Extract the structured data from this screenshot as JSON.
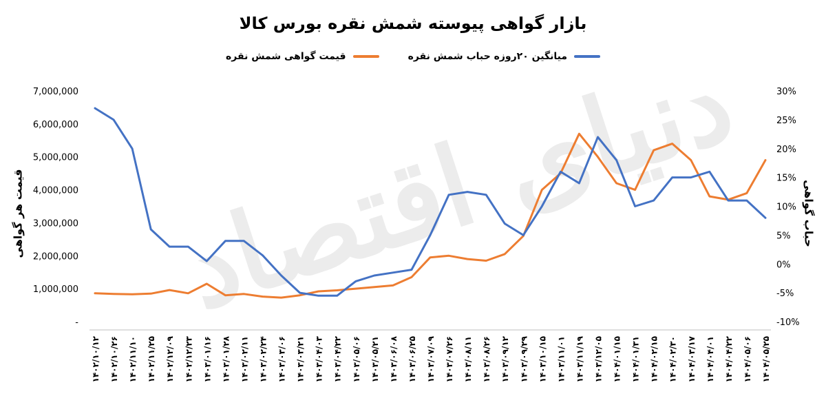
{
  "title": "بازار گواهی پیوسته شمش نقره بورس کالا",
  "watermark": "دنیای اقتصاد",
  "chart_data": {
    "type": "line",
    "title": "بازار گواهی پیوسته شمش نقره بورس کالا",
    "ylabel_left": "قیمت هر گواهی",
    "ylabel_right": "حباب گواهی",
    "ylim_left": [
      0,
      7000000
    ],
    "ylim_right": [
      -10,
      30
    ],
    "yticks_left": [
      "7,000,000",
      "6,000,000",
      "5,000,000",
      "4,000,000",
      "3,000,000",
      "2,000,000",
      "1,000,000",
      "-"
    ],
    "yticks_right": [
      "30%",
      "25%",
      "20%",
      "15%",
      "10%",
      "5%",
      "0%",
      "-5%",
      "-10%"
    ],
    "legend_position": "top",
    "grid": false,
    "categories": [
      "1402/10/12",
      "1402/10/26",
      "1402/11/10",
      "1402/11/25",
      "1402/12/09",
      "1402/12/23",
      "1403/01/16",
      "1403/01/28",
      "1403/02/11",
      "1403/02/24",
      "1403/03/06",
      "1403/03/21",
      "1403/04/03",
      "1403/04/22",
      "1403/05/06",
      "1403/05/21",
      "1403/06/08",
      "1403/06/25",
      "1403/07/09",
      "1403/07/26",
      "1403/08/11",
      "1403/08/26",
      "1403/09/12",
      "1403/09/29",
      "1403/10/15",
      "1403/11/01",
      "1403/11/19",
      "1403/12/05",
      "1404/01/15",
      "1404/01/31",
      "1404/02/15",
      "1404/02/30",
      "1404/03/17",
      "1404/04/01",
      "1404/04/22",
      "1404/05/06",
      "1404/05/25"
    ],
    "category_labels": [
      "۱۴۰۲/۱۰/۱۲",
      "۱۴۰۲/۱۰/۲۶",
      "۱۴۰۲/۱۱/۱۰",
      "۱۴۰۲/۱۱/۲۵",
      "۱۴۰۲/۱۲/۰۹",
      "۱۴۰۲/۱۲/۲۳",
      "۱۴۰۳/۰۱/۱۶",
      "۱۴۰۳/۰۱/۲۸",
      "۱۴۰۳/۰۲/۱۱",
      "۱۴۰۳/۰۲/۲۴",
      "۱۴۰۳/۰۳/۰۶",
      "۱۴۰۳/۰۳/۲۱",
      "۱۴۰۳/۰۴/۰۳",
      "۱۴۰۳/۰۴/۲۲",
      "۱۴۰۳/۰۵/۰۶",
      "۱۴۰۳/۰۵/۲۱",
      "۱۴۰۳/۰۶/۰۸",
      "۱۴۰۳/۰۶/۲۵",
      "۱۴۰۳/۰۷/۰۹",
      "۱۴۰۳/۰۷/۲۶",
      "۱۴۰۳/۰۸/۱۱",
      "۱۴۰۳/۰۸/۲۶",
      "۱۴۰۳/۰۹/۱۲",
      "۱۴۰۳/۰۹/۲۹",
      "۱۴۰۳/۱۰/۱۵",
      "۱۴۰۳/۱۱/۰۱",
      "۱۴۰۳/۱۱/۱۹",
      "۱۴۰۳/۱۲/۰۵",
      "۱۴۰۴/۰۱/۱۵",
      "۱۴۰۴/۰۱/۳۱",
      "۱۴۰۴/۰۲/۱۵",
      "۱۴۰۴/۰۲/۳۰",
      "۱۴۰۴/۰۳/۱۷",
      "۱۴۰۴/۰۴/۰۱",
      "۱۴۰۴/۰۴/۲۲",
      "۱۴۰۴/۰۵/۰۶",
      "۱۴۰۴/۰۵/۲۵"
    ],
    "series": [
      {
        "name": "قیمت گواهی شمش نقره",
        "axis": "left",
        "color": "#ED7D31",
        "values": [
          860000,
          840000,
          830000,
          850000,
          960000,
          860000,
          1150000,
          800000,
          840000,
          760000,
          730000,
          800000,
          920000,
          950000,
          1000000,
          1050000,
          1100000,
          1350000,
          1950000,
          2000000,
          1900000,
          1850000,
          2050000,
          2600000,
          4000000,
          4500000,
          5700000,
          5000000,
          4200000,
          4000000,
          5200000,
          5400000,
          4900000,
          3800000,
          3700000,
          3900000,
          4900000
        ]
      },
      {
        "name": "میانگین ۲۰روزه حباب شمش نقره",
        "axis": "right",
        "color": "#4472C4",
        "values": [
          27,
          25,
          20,
          6,
          3,
          3,
          0.5,
          4,
          4,
          1.5,
          -2,
          -5,
          -5.5,
          -5.5,
          -3,
          -2,
          -1.5,
          -1,
          5,
          12,
          12.5,
          12,
          7,
          5,
          10,
          16,
          14,
          22,
          18,
          10,
          11,
          15,
          15,
          16,
          11,
          11,
          8
        ]
      }
    ]
  }
}
